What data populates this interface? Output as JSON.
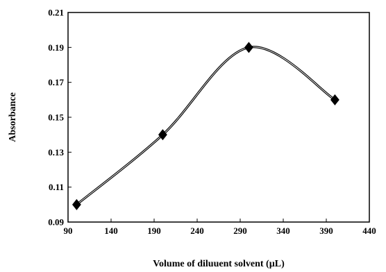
{
  "chart_data": {
    "type": "line",
    "title": "",
    "xlabel": "Volume of diluuent solvent (µL)",
    "ylabel": "Absorbance",
    "xlim": [
      90,
      440
    ],
    "ylim": [
      0.09,
      0.21
    ],
    "xticks": [
      "90",
      "140",
      "190",
      "240",
      "290",
      "340",
      "390",
      "440"
    ],
    "yticks": [
      "0.09",
      "0.11",
      "0.13",
      "0.15",
      "0.17",
      "0.19",
      "0.21"
    ],
    "grid": false,
    "legend": "none",
    "marker": "diamond",
    "smooth": true,
    "colors": {
      "line": "#000000",
      "marker": "#000000"
    },
    "series": [
      {
        "x": [
          100,
          200,
          300,
          400
        ],
        "y": [
          0.1,
          0.14,
          0.19,
          0.16
        ]
      }
    ]
  }
}
